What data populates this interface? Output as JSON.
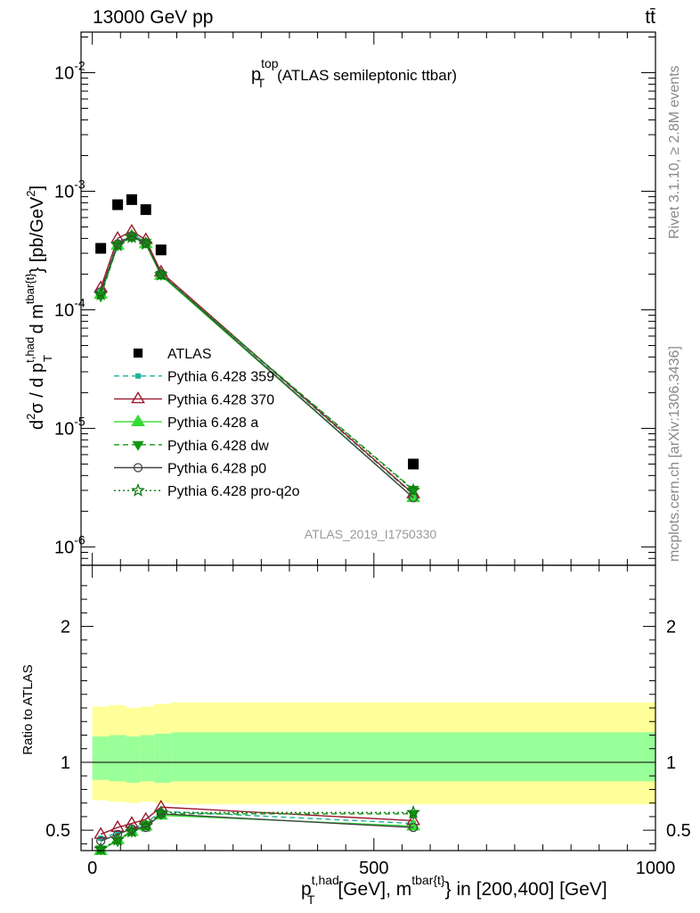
{
  "header": {
    "left": "13000 GeV pp",
    "right": "tt̄",
    "side_top": "Rivet 3.1.10, ≥ 2.8M events",
    "side_bottom": "mcplots.cern.ch [arXiv:1306.3436]",
    "watermark": "ATLAS_2019_I1750330"
  },
  "colors": {
    "band_outer": "#ffff99",
    "band_inner": "#99ff99",
    "atlas": "#000000",
    "p359": "#1fb39a",
    "p370": "#9a1b2f",
    "pa": "#33dd33",
    "pdw": "#119911",
    "pp0": "#444444",
    "pq2o": "#117711"
  },
  "chart_data": [
    {
      "type": "scatter",
      "title": "p_T^top (ATLAS semileptonic ttbar)",
      "title_main": "p",
      "title_sub": "T",
      "title_sup": "top",
      "title_rest": "(ATLAS semileptonic ttbar)",
      "ylabel": "d²σ / d p_T^{t,had} d m^{tbar{t}} [pb/GeV²]",
      "yscale": "log",
      "ylim": [
        7e-07,
        0.022
      ],
      "xlim": [
        -20,
        1000
      ],
      "y_ticks": [
        {
          "v": 1e-06,
          "exp": "-6"
        },
        {
          "v": 1e-05,
          "exp": "-5"
        },
        {
          "v": 0.0001,
          "exp": "-4"
        },
        {
          "v": 0.001,
          "exp": "-3"
        },
        {
          "v": 0.01,
          "exp": "-2"
        }
      ],
      "y_tick_base": "10",
      "legend_position": "middle-left",
      "series": [
        {
          "name": "ATLAS",
          "key": "atlas",
          "marker": "square",
          "line": "none",
          "x": [
            15,
            45,
            70,
            95,
            122,
            570
          ],
          "y": [
            0.00033,
            0.00077,
            0.00085,
            0.0007,
            0.00032,
            5e-06
          ]
        },
        {
          "name": "Pythia 6.428 359",
          "key": "p359",
          "marker": "square-small",
          "line": "dashed",
          "x": [
            15,
            45,
            70,
            95,
            122,
            570
          ],
          "y": [
            0.000145,
            0.00037,
            0.00043,
            0.00038,
            0.000205,
            2.75e-06
          ]
        },
        {
          "name": "Pythia 6.428 370",
          "key": "p370",
          "marker": "triangle-open",
          "line": "solid",
          "x": [
            15,
            45,
            70,
            95,
            122,
            570
          ],
          "y": [
            0.000153,
            0.0004,
            0.00046,
            0.00039,
            0.000208,
            2.8e-06
          ]
        },
        {
          "name": "Pythia 6.428 a",
          "key": "pa",
          "marker": "triangle",
          "line": "solid",
          "x": [
            15,
            45,
            70,
            95,
            122,
            570
          ],
          "y": [
            0.000135,
            0.00035,
            0.00042,
            0.00036,
            0.000195,
            2.6e-06
          ]
        },
        {
          "name": "Pythia 6.428 dw",
          "key": "pdw",
          "marker": "triangle-down",
          "line": "dashed",
          "x": [
            15,
            45,
            70,
            95,
            122,
            570
          ],
          "y": [
            0.00013,
            0.00035,
            0.00041,
            0.00037,
            0.000198,
            3.05e-06
          ]
        },
        {
          "name": "Pythia 6.428 p0",
          "key": "pp0",
          "marker": "circle-open",
          "line": "solid",
          "x": [
            15,
            45,
            70,
            95,
            122,
            570
          ],
          "y": [
            0.000142,
            0.00036,
            0.00042,
            0.000365,
            0.0002,
            2.6e-06
          ]
        },
        {
          "name": "Pythia 6.428 pro-q2o",
          "key": "pq2o",
          "marker": "star-open",
          "line": "dotted",
          "x": [
            15,
            45,
            70,
            95,
            122,
            570
          ],
          "y": [
            0.000135,
            0.00035,
            0.00041,
            0.00036,
            0.000198,
            3e-06
          ]
        }
      ]
    },
    {
      "type": "scatter",
      "ylabel": "Ratio to ATLAS",
      "xlabel": "p_T^{t,had} [GeV], m^{tbar{t}} in [200,400] [GeV]",
      "xlabel_rest": "[GeV], m",
      "xlabel_sup1": "t,had",
      "xlabel_sup2": "tbar{t}",
      "xlabel_tail": "} in [200,400] [GeV]",
      "ylim": [
        0.35,
        2.45
      ],
      "xlim": [
        -20,
        1000
      ],
      "y_ticks": [
        0.5,
        1,
        2
      ],
      "y_tick_labels": [
        "0.5",
        "1",
        "2"
      ],
      "x_ticks": [
        0,
        500,
        1000
      ],
      "x_tick_labels": [
        "0",
        "500",
        "1000"
      ],
      "bands": {
        "edges": [
          0,
          30,
          60,
          85,
          110,
          140,
          1000
        ],
        "outer_lo": [
          0.72,
          0.71,
          0.7,
          0.71,
          0.7,
          0.69
        ],
        "outer_hi": [
          1.41,
          1.42,
          1.4,
          1.41,
          1.43,
          1.44
        ],
        "inner_lo": [
          0.87,
          0.86,
          0.85,
          0.86,
          0.85,
          0.86
        ],
        "inner_hi": [
          1.19,
          1.2,
          1.19,
          1.2,
          1.21,
          1.22
        ]
      },
      "series": [
        {
          "name": "Pythia 6.428 359",
          "key": "p359",
          "marker": "square-small",
          "line": "dashed",
          "x": [
            15,
            45,
            70,
            95,
            122,
            570
          ],
          "y": [
            0.44,
            0.48,
            0.51,
            0.55,
            0.64,
            0.55
          ]
        },
        {
          "name": "Pythia 6.428 370",
          "key": "p370",
          "marker": "triangle-open",
          "line": "solid",
          "x": [
            15,
            45,
            70,
            95,
            122,
            570
          ],
          "y": [
            0.47,
            0.52,
            0.55,
            0.58,
            0.67,
            0.57
          ]
        },
        {
          "name": "Pythia 6.428 a",
          "key": "pa",
          "marker": "triangle",
          "line": "solid",
          "x": [
            15,
            45,
            70,
            95,
            122,
            570
          ],
          "y": [
            0.35,
            0.43,
            0.49,
            0.53,
            0.61,
            0.53
          ]
        },
        {
          "name": "Pythia 6.428 dw",
          "key": "pdw",
          "marker": "triangle-down",
          "line": "dashed",
          "x": [
            15,
            45,
            70,
            95,
            122,
            570
          ],
          "y": [
            0.36,
            0.42,
            0.49,
            0.54,
            0.62,
            0.62
          ]
        },
        {
          "name": "Pythia 6.428 p0",
          "key": "pp0",
          "marker": "circle-open",
          "line": "solid",
          "x": [
            15,
            45,
            70,
            95,
            122,
            570
          ],
          "y": [
            0.42,
            0.47,
            0.51,
            0.52,
            0.62,
            0.52
          ]
        },
        {
          "name": "Pythia 6.428 pro-q2o",
          "key": "pq2o",
          "marker": "star-open",
          "line": "dotted",
          "x": [
            15,
            45,
            70,
            95,
            122,
            570
          ],
          "y": [
            0.36,
            0.43,
            0.49,
            0.53,
            0.63,
            0.63
          ]
        }
      ]
    }
  ]
}
